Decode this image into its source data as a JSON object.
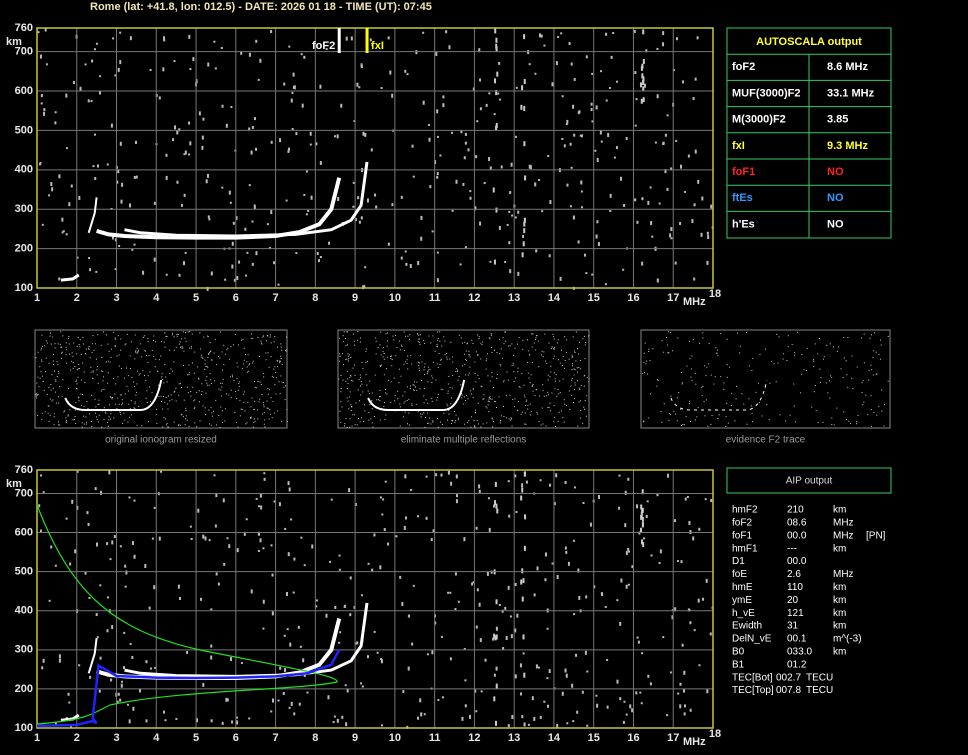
{
  "header": {
    "title": "Rome (lat: +41.8, lon: 012.5) - DATE: 2026 01 18 - TIME (UT): 07:45"
  },
  "ionogram_top": {
    "y_unit": "km",
    "x_unit": "MHz",
    "yticks": [
      760,
      700,
      600,
      500,
      400,
      300,
      200,
      100
    ],
    "xticks": [
      1,
      2,
      3,
      4,
      5,
      6,
      7,
      8,
      9,
      10,
      11,
      12,
      13,
      14,
      15,
      16,
      17,
      18
    ],
    "markers": [
      "foF2",
      "fxI"
    ]
  },
  "thumbnails": [
    {
      "caption": "original ionogram resized"
    },
    {
      "caption": "eliminate multiple reflections"
    },
    {
      "caption": "evidence F2 trace"
    }
  ],
  "ionogram_bottom": {
    "y_unit": "km",
    "x_unit": "MHz",
    "yticks": [
      760,
      700,
      600,
      500,
      400,
      300,
      200,
      100
    ],
    "xticks": [
      1,
      2,
      3,
      4,
      5,
      6,
      7,
      8,
      9,
      10,
      11,
      12,
      13,
      14,
      15,
      16,
      17,
      18
    ]
  },
  "autoscala": {
    "title": "AUTOSCALA output",
    "rows": [
      [
        "foF2",
        "8.6 MHz"
      ],
      [
        "MUF(3000)F2",
        "33.1 MHz"
      ],
      [
        "M(3000)F2",
        "3.85"
      ],
      [
        "fxI",
        "9.3 MHz"
      ],
      [
        "foF1",
        "NO"
      ],
      [
        "ftEs",
        "NO"
      ],
      [
        "h'Es",
        "NO"
      ]
    ]
  },
  "aip": {
    "title": "AIP output",
    "rows": [
      [
        "hmF2",
        "210",
        "km"
      ],
      [
        "foF2",
        "08.6",
        "MHz"
      ],
      [
        "foF1",
        "00.0",
        "MHz",
        "[PN]"
      ],
      [
        "hmF1",
        "---",
        "km"
      ],
      [
        "D1",
        "00.0"
      ],
      [
        "foE",
        "2.6",
        "MHz"
      ],
      [
        "hmE",
        "110",
        "km"
      ],
      [
        "ymE",
        "20",
        "km"
      ],
      [
        "h_vE",
        "121",
        "km"
      ],
      [
        "Ewidth",
        "31",
        "km"
      ],
      [
        "DelN_vE",
        "00.1",
        "m^(-3)"
      ],
      [
        "B0",
        "033.0",
        "km"
      ],
      [
        "B1",
        "01.2"
      ],
      [
        "TEC[Bot]",
        "002.7",
        "TECU"
      ],
      [
        "TEC[Top]",
        "007.8",
        "TECU"
      ]
    ]
  }
}
